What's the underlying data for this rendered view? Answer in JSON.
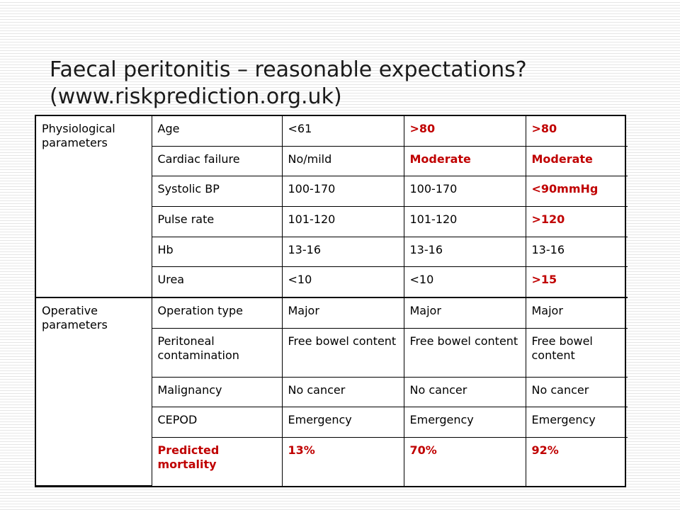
{
  "title": {
    "line1": "Faecal peritonitis – reasonable expectations?",
    "line2": "(www.riskprediction.org.uk)"
  },
  "colors": {
    "highlight": "#c00000",
    "text": "#000000"
  },
  "physiological": {
    "label": "Physiological parameters",
    "rows": [
      {
        "param": "Age",
        "v1": "<61",
        "v2": ">80",
        "v3": ">80",
        "red": [
          false,
          true,
          true
        ]
      },
      {
        "param": "Cardiac failure",
        "v1": "No/mild",
        "v2": "Moderate",
        "v3": "Moderate",
        "red": [
          false,
          true,
          true
        ]
      },
      {
        "param": "Systolic BP",
        "v1": "100-170",
        "v2": "100-170",
        "v3": "<90mmHg",
        "red": [
          false,
          false,
          true
        ]
      },
      {
        "param": "Pulse rate",
        "v1": "101-120",
        "v2": "101-120",
        "v3": ">120",
        "red": [
          false,
          false,
          true
        ]
      },
      {
        "param": "Hb",
        "v1": "13-16",
        "v2": "13-16",
        "v3": "13-16",
        "red": [
          false,
          false,
          false
        ]
      },
      {
        "param": "Urea",
        "v1": "<10",
        "v2": "<10",
        "v3": ">15",
        "red": [
          false,
          false,
          true
        ]
      }
    ]
  },
  "operative": {
    "label": "Operative parameters",
    "rows": [
      {
        "param": "Operation type",
        "v1": "Major",
        "v2": "Major",
        "v3": "Major"
      },
      {
        "param": "Peritoneal contamination",
        "v1": "Free bowel content",
        "v2": "Free bowel content",
        "v3": "Free bowel content"
      },
      {
        "param": "Malignancy",
        "v1": "No cancer",
        "v2": "No cancer",
        "v3": "No cancer"
      },
      {
        "param": "CEPOD",
        "v1": "Emergency",
        "v2": "Emergency",
        "v3": "Emergency"
      }
    ],
    "mortality": {
      "param": "Predicted mortality",
      "v1": "13%",
      "v2": "70%",
      "v3": "92%"
    }
  }
}
